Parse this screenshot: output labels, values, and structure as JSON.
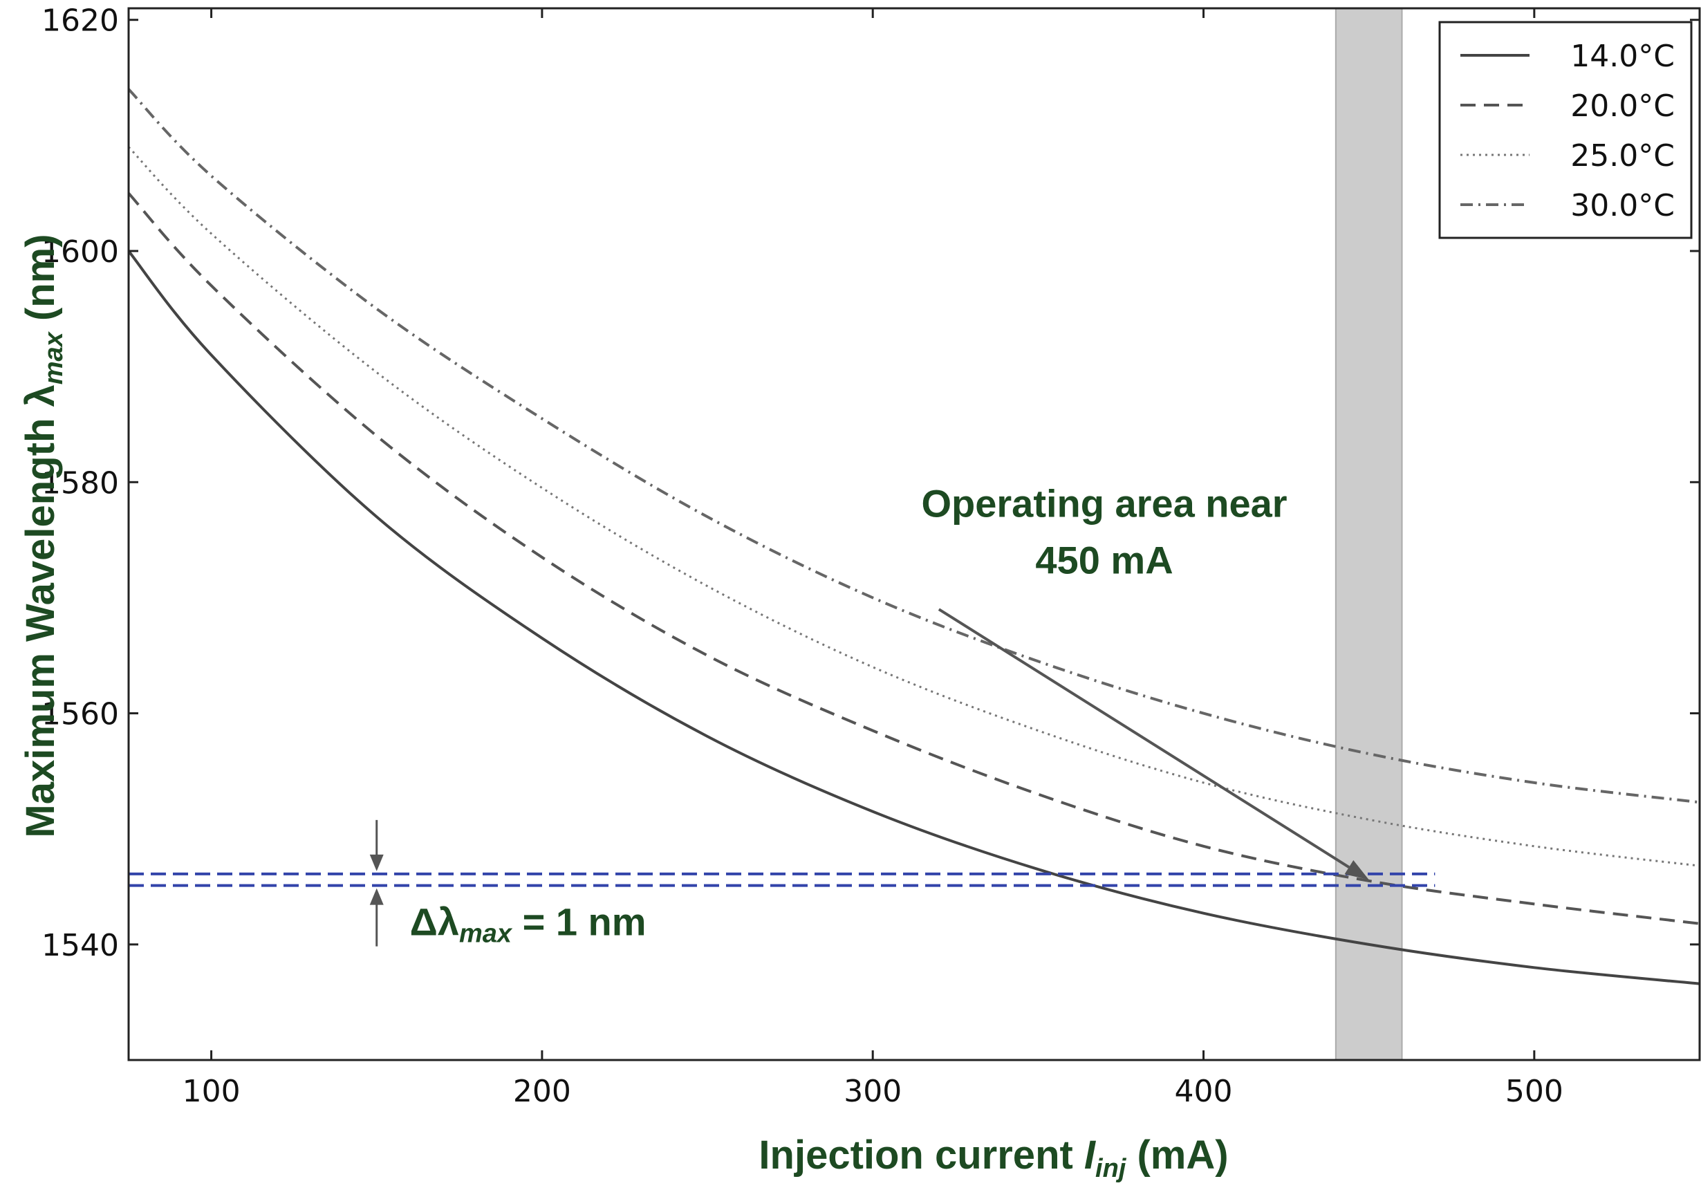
{
  "chart_data": {
    "type": "line",
    "title": "",
    "xlabel": {
      "main": "Injection current ",
      "var": "I",
      "sub": "inj",
      "unit": " (mA)"
    },
    "ylabel": {
      "main": "Maximum Wavelength ",
      "var": "λ",
      "sub": "max",
      "unit": " (nm)"
    },
    "xlim": [
      75,
      550
    ],
    "ylim": [
      1530,
      1621
    ],
    "xticks": [
      100,
      200,
      300,
      400,
      500
    ],
    "yticks": [
      1540,
      1560,
      1580,
      1600,
      1620
    ],
    "grid": false,
    "legend_position": "top-right",
    "series": [
      {
        "name": "14.0°C",
        "style": "solid",
        "color": "#444444",
        "x": [
          75,
          100,
          150,
          200,
          250,
          300,
          350,
          400,
          450,
          500,
          550
        ],
        "y": [
          1600.0,
          1591.0,
          1577.0,
          1566.5,
          1558.0,
          1551.5,
          1546.5,
          1542.7,
          1540.0,
          1538.0,
          1536.6
        ]
      },
      {
        "name": "20.0°C",
        "style": "dashed",
        "color": "#555555",
        "x": [
          75,
          100,
          150,
          200,
          250,
          300,
          350,
          400,
          450,
          500,
          550
        ],
        "y": [
          1605.0,
          1597.0,
          1584.0,
          1573.5,
          1565.0,
          1558.5,
          1553.0,
          1548.5,
          1545.5,
          1543.5,
          1541.8
        ]
      },
      {
        "name": "25.0°C",
        "style": "dotted",
        "color": "#777777",
        "x": [
          75,
          100,
          150,
          200,
          250,
          300,
          350,
          400,
          450,
          500,
          550
        ],
        "y": [
          1609.0,
          1601.5,
          1589.5,
          1579.5,
          1571.0,
          1564.0,
          1558.5,
          1554.0,
          1550.8,
          1548.5,
          1546.8
        ]
      },
      {
        "name": "30.0°C",
        "style": "dashdot",
        "color": "#666666",
        "x": [
          75,
          100,
          150,
          200,
          250,
          300,
          350,
          400,
          450,
          500,
          550
        ],
        "y": [
          1614.0,
          1606.5,
          1595.0,
          1585.5,
          1577.0,
          1570.0,
          1564.5,
          1560.0,
          1556.5,
          1554.0,
          1552.3
        ]
      }
    ],
    "operating_band": {
      "x_from": 440,
      "x_to": 460,
      "color": "#cccccc"
    },
    "reference_lines": {
      "y": [
        1545.1,
        1546.1
      ],
      "x_from": 75,
      "x_to": 470,
      "color": "#3344aa",
      "style": "dashed"
    },
    "delta_arrow_x": 150,
    "annotations": {
      "operating_line1": "Operating area near",
      "operating_line2": "450 mA",
      "operating_text_at": {
        "x": 370,
        "y": 1577
      },
      "operating_arrow_from": {
        "x": 320,
        "y": 1569
      },
      "operating_arrow_to": {
        "x": 450,
        "y": 1545.6
      },
      "delta": {
        "symbol": "Δλ",
        "sub": "max",
        "rest": " = 1 nm"
      },
      "delta_text_at": {
        "x": 160,
        "y": 1540.8
      }
    }
  }
}
